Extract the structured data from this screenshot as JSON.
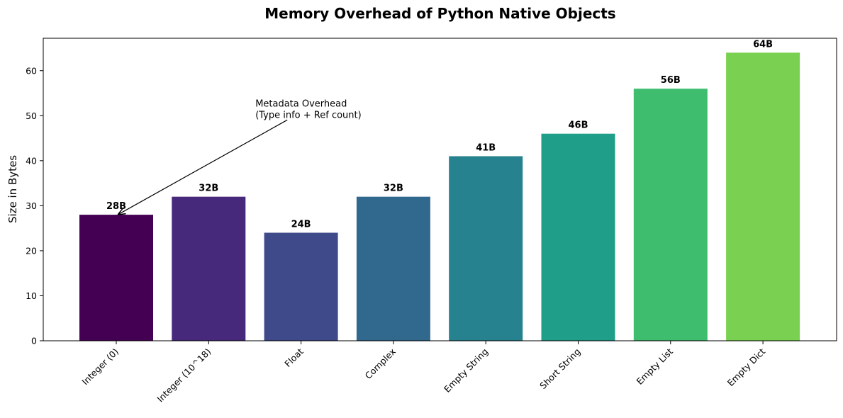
{
  "chart_data": {
    "type": "bar",
    "title": "Memory Overhead of Python Native Objects",
    "xlabel": "",
    "ylabel": "Size in Bytes",
    "ylim": [
      0,
      67.2
    ],
    "yticks": [
      0,
      10,
      20,
      30,
      40,
      50,
      60
    ],
    "categories": [
      "Integer (0)",
      "Integer (10^18)",
      "Float",
      "Complex",
      "Empty String",
      "Short String",
      "Empty List",
      "Empty Dict"
    ],
    "values": [
      28,
      32,
      24,
      32,
      41,
      46,
      56,
      64
    ],
    "data_labels": [
      "28B",
      "32B",
      "24B",
      "32B",
      "41B",
      "46B",
      "56B",
      "64B"
    ],
    "colors": [
      "#440154",
      "#46297b",
      "#3e4a89",
      "#31688e",
      "#26828e",
      "#1f9e89",
      "#3ebd6f",
      "#7ad151"
    ],
    "grid": false,
    "annotation": {
      "lines": [
        "Metadata Overhead",
        "(Type info + Ref count)"
      ],
      "text_at": [
        "Empty String",
        50
      ],
      "points_to_category": "Integer (0)",
      "points_to_value": 28
    }
  }
}
